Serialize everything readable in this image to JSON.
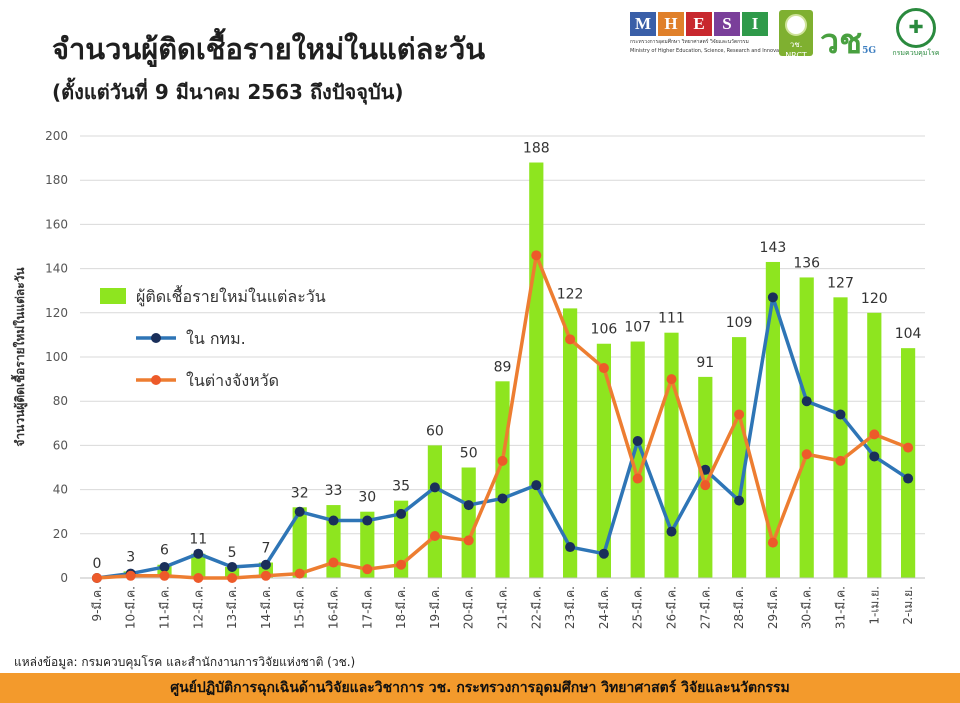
{
  "header": {
    "title": "จำนวนผู้ติดเชื้อรายใหม่ในแต่ละวัน",
    "subtitle": "(ตั้งแต่วันที่ 9 มีนาคม 2563 ถึงปัจจุบัน)"
  },
  "logos": {
    "mhesi_letters": [
      "M",
      "H",
      "E",
      "S",
      "I"
    ],
    "mhesi_colors": [
      "#3a5fa8",
      "#e0802a",
      "#c8282e",
      "#7a3f9a",
      "#2f9a4a"
    ],
    "mhesi_sub": "กระทรวงการอุดมศึกษา วิทยาศาสตร์ วิจัยและนวัตกรรม",
    "mhesi_sub_en": "Ministry of Higher Education, Science, Research and Innovation",
    "nrct_label": "วช. NRCT",
    "vor_label": "วช",
    "vor_5g": "5G",
    "dcd_label": "กรมควบคุมโรค"
  },
  "chart_data": {
    "type": "bar",
    "title": "จำนวนผู้ติดเชื้อรายใหม่ในแต่ละวัน",
    "ylabel": "จำนวนผู้ติดเชื้อรายใหม่ในแต่ละวัน",
    "xlabel": "",
    "ylim": [
      0,
      200
    ],
    "yticks": [
      0,
      20,
      40,
      60,
      80,
      100,
      120,
      140,
      160,
      180,
      200
    ],
    "grid": true,
    "categories": [
      "9-มี.ค.",
      "10-มี.ค.",
      "11-มี.ค.",
      "12-มี.ค.",
      "13-มี.ค.",
      "14-มี.ค.",
      "15-มี.ค.",
      "16-มี.ค.",
      "17-มี.ค.",
      "18-มี.ค.",
      "19-มี.ค.",
      "20-มี.ค.",
      "21-มี.ค.",
      "22-มี.ค.",
      "23-มี.ค.",
      "24-มี.ค.",
      "25-มี.ค.",
      "26-มี.ค.",
      "27-มี.ค.",
      "28-มี.ค.",
      "29-มี.ค.",
      "30-มี.ค.",
      "31-มี.ค.",
      "1-เม.ย.",
      "2-เม.ย."
    ],
    "series": [
      {
        "name": "ผู้ติดเชื้อรายใหม่ในแต่ละวัน",
        "kind": "bar",
        "color": "#8ee51f",
        "values": [
          0,
          3,
          6,
          11,
          5,
          7,
          32,
          33,
          30,
          35,
          60,
          50,
          89,
          188,
          122,
          106,
          107,
          111,
          91,
          109,
          143,
          136,
          127,
          120,
          104
        ],
        "labels": [
          "0",
          "3",
          "6",
          "11",
          "5",
          "7",
          "32",
          "33",
          "30",
          "35",
          "60",
          "50",
          "89",
          "188",
          "122",
          "106",
          "107",
          "111",
          "91",
          "109",
          "143",
          "136",
          "127",
          "120",
          "104"
        ]
      },
      {
        "name": "ใน กทม.",
        "kind": "line",
        "color": "#2e75b6",
        "marker": "#1a2f5a",
        "values": [
          0,
          2,
          5,
          11,
          5,
          6,
          30,
          26,
          26,
          29,
          41,
          33,
          36,
          42,
          14,
          11,
          62,
          21,
          49,
          35,
          127,
          80,
          74,
          55,
          45
        ]
      },
      {
        "name": "ในต่างจังหวัด",
        "kind": "line",
        "color": "#ed7d31",
        "marker": "#ed5a2a",
        "values": [
          0,
          1,
          1,
          0,
          0,
          1,
          2,
          7,
          4,
          6,
          19,
          17,
          53,
          146,
          108,
          95,
          45,
          90,
          42,
          74,
          16,
          56,
          53,
          65,
          59
        ]
      }
    ],
    "legend_position": "upper-left"
  },
  "source": "แหล่งข้อมูล: กรมควบคุมโรค และสำนักงานการวิจัยแห่งชาติ (วช.)",
  "footer": "ศูนย์ปฏิบัติการฉุกเฉินด้านวิจัยและวิชาการ   วช.   กระทรวงการอุดมศึกษา วิทยาศาสตร์ วิจัยและนวัตกรรม"
}
